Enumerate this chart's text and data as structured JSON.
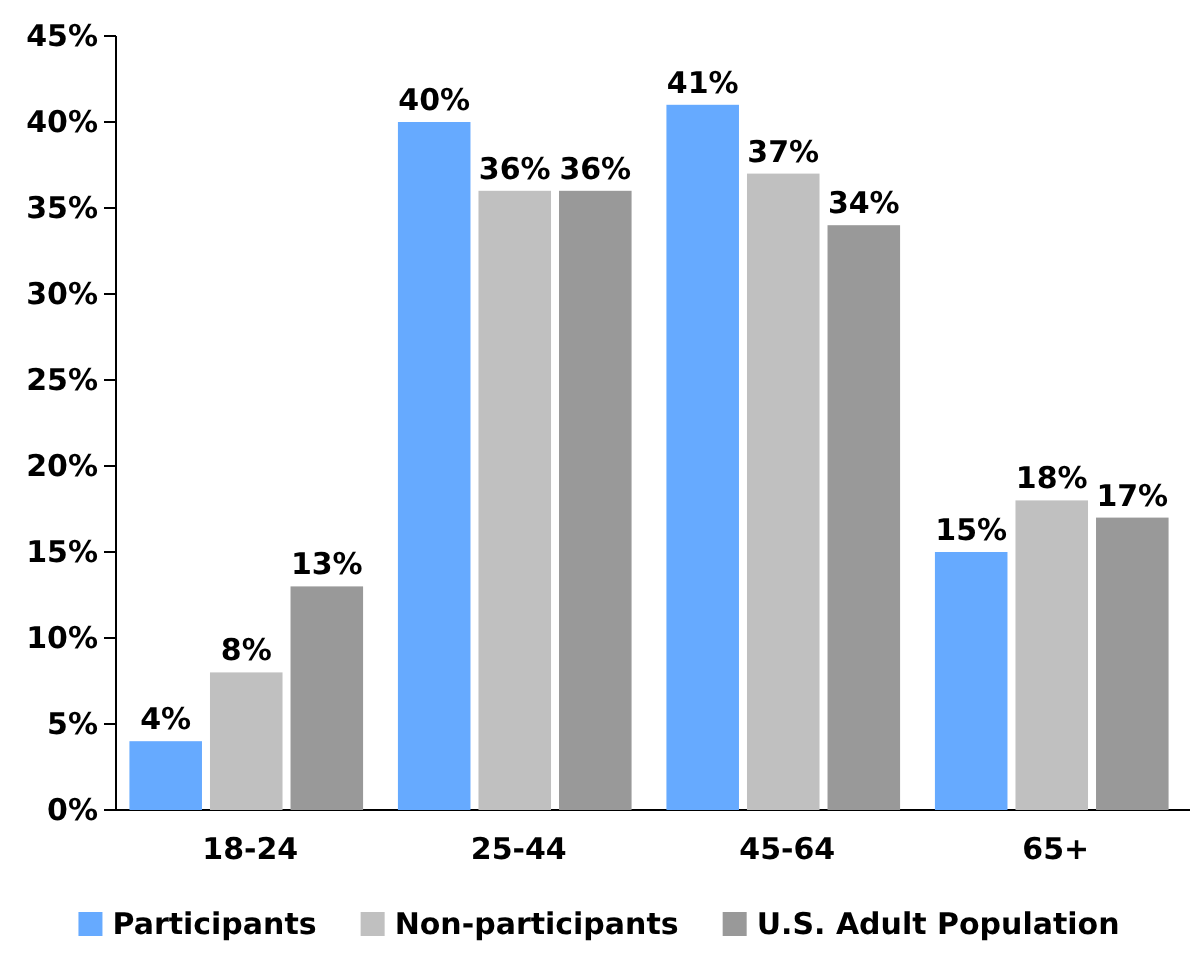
{
  "chart_data": {
    "type": "bar",
    "categories": [
      "18-24",
      "25-44",
      "45-64",
      "65+"
    ],
    "series": [
      {
        "name": "Participants",
        "color": "#66aaff",
        "values": [
          4,
          40,
          41,
          15
        ],
        "value_labels": [
          "4%",
          "40%",
          "41%",
          "15%"
        ]
      },
      {
        "name": "Non-participants",
        "color": "#c0c0c0",
        "values": [
          8,
          36,
          37,
          18
        ],
        "value_labels": [
          "8%",
          "36%",
          "37%",
          "18%"
        ]
      },
      {
        "name": "U.S. Adult Population",
        "color": "#999999",
        "values": [
          13,
          36,
          34,
          17
        ],
        "value_labels": [
          "13%",
          "36%",
          "34%",
          "17%"
        ]
      }
    ],
    "ylim": [
      0,
      45
    ],
    "yticks": [
      {
        "value": 0,
        "label": "0%"
      },
      {
        "value": 5,
        "label": "5%"
      },
      {
        "value": 10,
        "label": "10%"
      },
      {
        "value": 15,
        "label": "15%"
      },
      {
        "value": 20,
        "label": "20%"
      },
      {
        "value": 25,
        "label": "25%"
      },
      {
        "value": 30,
        "label": "30%"
      },
      {
        "value": 35,
        "label": "35%"
      },
      {
        "value": 40,
        "label": "40%"
      },
      {
        "value": 45,
        "label": "45%"
      }
    ],
    "grid": false,
    "legend": "bottom"
  }
}
